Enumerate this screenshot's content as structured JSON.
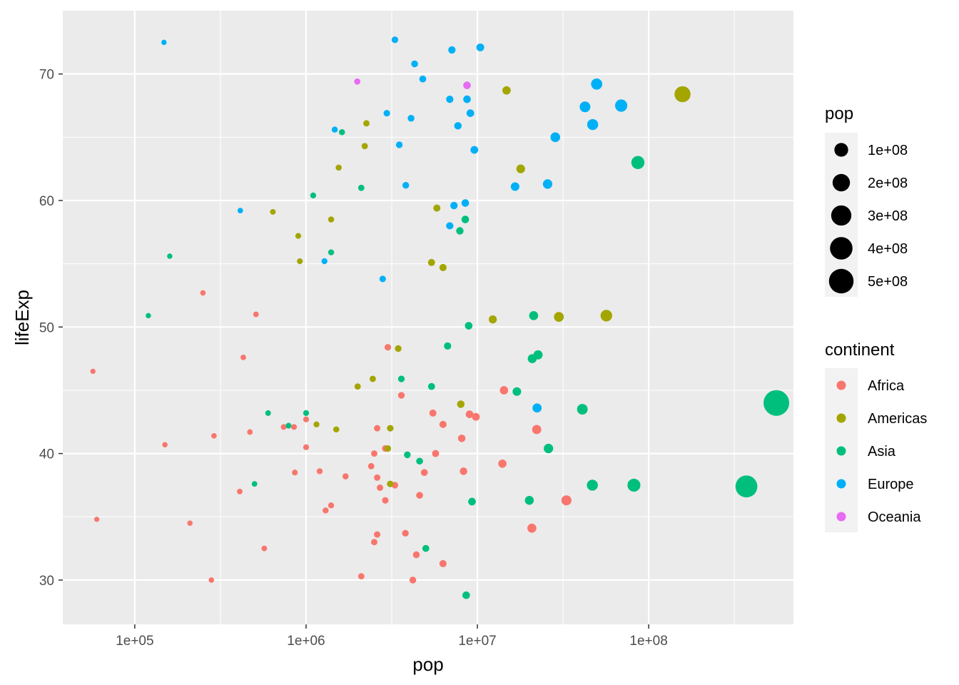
{
  "chart_data": {
    "type": "scatter",
    "title": "",
    "xlabel": "pop",
    "ylabel": "lifeExp",
    "x_scale": "log10",
    "xlim": [
      38000,
      700000000
    ],
    "ylim": [
      26.5,
      75
    ],
    "x_ticks": [
      100000,
      1000000,
      10000000,
      100000000
    ],
    "x_tick_labels": [
      "1e+05",
      "1e+06",
      "1e+07",
      "1e+08"
    ],
    "y_ticks": [
      30,
      40,
      50,
      60,
      70
    ],
    "y_tick_labels": [
      "30",
      "40",
      "50",
      "60",
      "70"
    ],
    "grid": true,
    "background": "#ebebeb",
    "legend_position": "right",
    "size_legend": {
      "title": "pop",
      "breaks": [
        100000000,
        200000000,
        300000000,
        400000000,
        500000000
      ],
      "labels": [
        "1e+08",
        "2e+08",
        "3e+08",
        "4e+08",
        "5e+08"
      ]
    },
    "color_legend": {
      "title": "continent",
      "entries": [
        {
          "name": "Africa",
          "color": "#F8766D"
        },
        {
          "name": "Americas",
          "color": "#A3A500"
        },
        {
          "name": "Asia",
          "color": "#00BF7D"
        },
        {
          "name": "Europe",
          "color": "#00B0F6"
        },
        {
          "name": "Oceania",
          "color": "#E76BF3"
        }
      ]
    },
    "series": [
      {
        "name": "Africa",
        "color": "#F8766D",
        "points": [
          [
            57000,
            46.5
          ],
          [
            60000,
            34.8
          ],
          [
            150000,
            40.7
          ],
          [
            210000,
            34.5
          ],
          [
            250000,
            52.7
          ],
          [
            280000,
            30.0
          ],
          [
            290000,
            41.4
          ],
          [
            410000,
            37.0
          ],
          [
            430000,
            47.6
          ],
          [
            470000,
            41.7
          ],
          [
            510000,
            51.0
          ],
          [
            570000,
            32.5
          ],
          [
            740000,
            42.1
          ],
          [
            850000,
            42.1
          ],
          [
            860000,
            38.5
          ],
          [
            1000000,
            42.7
          ],
          [
            1000000,
            40.5
          ],
          [
            1200000,
            38.6
          ],
          [
            1300000,
            35.5
          ],
          [
            1400000,
            35.9
          ],
          [
            1700000,
            38.2
          ],
          [
            2100000,
            30.3
          ],
          [
            2400000,
            39.0
          ],
          [
            2500000,
            33.0
          ],
          [
            2500000,
            40.0
          ],
          [
            2600000,
            33.6
          ],
          [
            2600000,
            38.1
          ],
          [
            2600000,
            42.0
          ],
          [
            2700000,
            37.3
          ],
          [
            2900000,
            36.3
          ],
          [
            2900000,
            40.4
          ],
          [
            3000000,
            48.4
          ],
          [
            3300000,
            37.5
          ],
          [
            3600000,
            44.6
          ],
          [
            3800000,
            33.7
          ],
          [
            4200000,
            30.0
          ],
          [
            4400000,
            32.0
          ],
          [
            4600000,
            36.7
          ],
          [
            4900000,
            38.5
          ],
          [
            5500000,
            43.2
          ],
          [
            5700000,
            40.0
          ],
          [
            6300000,
            31.3
          ],
          [
            6300000,
            42.3
          ],
          [
            8100000,
            41.2
          ],
          [
            8300000,
            38.6
          ],
          [
            9000000,
            43.1
          ],
          [
            9800000,
            42.9
          ],
          [
            14000000,
            39.2
          ],
          [
            14300000,
            45.0
          ],
          [
            20800000,
            34.1
          ],
          [
            22200000,
            41.9
          ],
          [
            33100000,
            36.3
          ]
        ]
      },
      {
        "name": "Americas",
        "color": "#A3A500",
        "points": [
          [
            640000,
            59.1
          ],
          [
            900000,
            57.2
          ],
          [
            920000,
            55.2
          ],
          [
            1150000,
            42.3
          ],
          [
            1400000,
            58.5
          ],
          [
            1500000,
            41.9
          ],
          [
            1550000,
            62.6
          ],
          [
            2000000,
            45.3
          ],
          [
            2200000,
            64.3
          ],
          [
            2250000,
            66.1
          ],
          [
            2450000,
            45.9
          ],
          [
            3000000,
            40.4
          ],
          [
            3100000,
            42.0
          ],
          [
            3100000,
            37.6
          ],
          [
            3450000,
            48.3
          ],
          [
            5400000,
            55.1
          ],
          [
            5800000,
            59.4
          ],
          [
            6300000,
            54.7
          ],
          [
            8000000,
            43.9
          ],
          [
            12300000,
            50.6
          ],
          [
            14800000,
            68.7
          ],
          [
            17900000,
            62.5
          ],
          [
            29900000,
            50.8
          ],
          [
            56600000,
            50.9
          ],
          [
            157600000,
            68.4
          ]
        ]
      },
      {
        "name": "Asia",
        "color": "#00BF7D",
        "points": [
          [
            120000,
            50.9
          ],
          [
            160000,
            55.6
          ],
          [
            500000,
            37.6
          ],
          [
            600000,
            43.2
          ],
          [
            790000,
            42.2
          ],
          [
            1000000,
            43.2
          ],
          [
            1100000,
            60.4
          ],
          [
            1400000,
            55.9
          ],
          [
            1620000,
            65.4
          ],
          [
            2100000,
            61.0
          ],
          [
            3600000,
            45.9
          ],
          [
            3900000,
            39.9
          ],
          [
            4600000,
            39.4
          ],
          [
            5000000,
            32.5
          ],
          [
            5400000,
            45.3
          ],
          [
            6700000,
            48.5
          ],
          [
            7900000,
            57.6
          ],
          [
            8500000,
            58.5
          ],
          [
            8600000,
            28.8
          ],
          [
            8900000,
            50.1
          ],
          [
            9300000,
            36.2
          ],
          [
            17000000,
            44.9
          ],
          [
            20100000,
            36.3
          ],
          [
            20900000,
            47.5
          ],
          [
            21300000,
            50.9
          ],
          [
            22600000,
            47.8
          ],
          [
            26000000,
            40.4
          ],
          [
            41000000,
            43.5
          ],
          [
            46900000,
            37.5
          ],
          [
            82000000,
            37.5
          ],
          [
            86500000,
            63.0
          ],
          [
            372000000,
            37.4
          ],
          [
            556300000,
            44.0
          ]
        ]
      },
      {
        "name": "Europe",
        "color": "#00B0F6",
        "points": [
          [
            148000,
            72.5
          ],
          [
            413000,
            59.2
          ],
          [
            1280000,
            55.2
          ],
          [
            1470000,
            65.6
          ],
          [
            2800000,
            53.8
          ],
          [
            2960000,
            66.9
          ],
          [
            3300000,
            72.7
          ],
          [
            3500000,
            64.4
          ],
          [
            3820000,
            61.2
          ],
          [
            4100000,
            66.5
          ],
          [
            4300000,
            70.8
          ],
          [
            4800000,
            69.6
          ],
          [
            6900000,
            68.0
          ],
          [
            7100000,
            71.9
          ],
          [
            7300000,
            59.6
          ],
          [
            6900000,
            58.0
          ],
          [
            7700000,
            65.9
          ],
          [
            8500000,
            59.8
          ],
          [
            8700000,
            68.0
          ],
          [
            9100000,
            66.9
          ],
          [
            9600000,
            64.0
          ],
          [
            10400000,
            72.1
          ],
          [
            16600000,
            61.1
          ],
          [
            22300000,
            43.6
          ],
          [
            25700000,
            61.3
          ],
          [
            28500000,
            65.0
          ],
          [
            42500000,
            67.4
          ],
          [
            47100000,
            66.0
          ],
          [
            49700000,
            69.2
          ],
          [
            69100000,
            67.5
          ]
        ]
      },
      {
        "name": "Oceania",
        "color": "#E76BF3",
        "points": [
          [
            1990000,
            69.4
          ],
          [
            8700000,
            69.1
          ]
        ]
      }
    ]
  }
}
